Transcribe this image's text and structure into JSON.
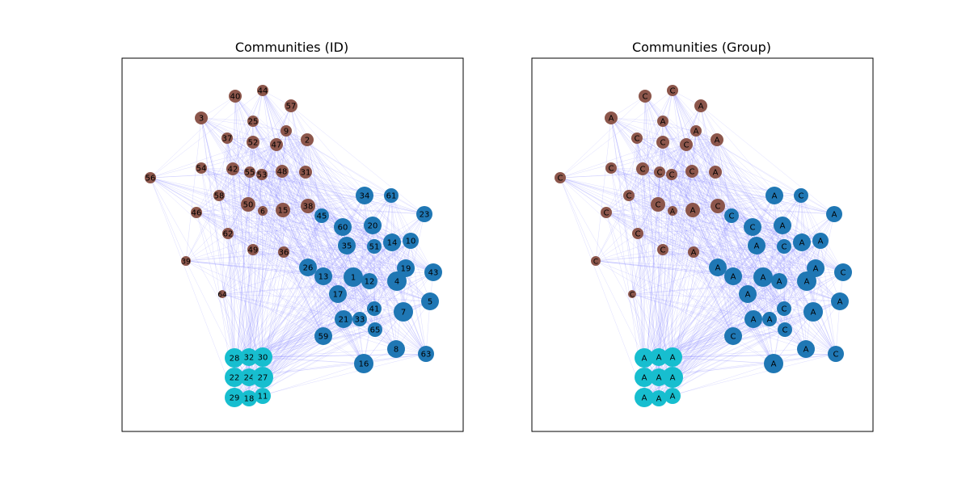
{
  "chart_data": [
    {
      "type": "network",
      "title": "Communities (ID)",
      "label_field": "id",
      "community_colors": {
        "brown": "#8c564b",
        "blue": "#1f77b4",
        "cyan": "#17becf"
      },
      "edge_color": "#8080ff"
    },
    {
      "type": "network",
      "title": "Communities (Group)",
      "label_field": "group",
      "community_colors": {
        "brown": "#8c564b",
        "blue": "#1f77b4",
        "cyan": "#17becf"
      },
      "edge_color": "#8080ff"
    }
  ],
  "nodes": [
    {
      "id": "44",
      "group": "C",
      "community": "brown"
    },
    {
      "id": "40",
      "group": "C",
      "community": "brown"
    },
    {
      "id": "57",
      "group": "A",
      "community": "brown"
    },
    {
      "id": "3",
      "group": "A",
      "community": "brown"
    },
    {
      "id": "25",
      "group": "A",
      "community": "brown"
    },
    {
      "id": "9",
      "group": "A",
      "community": "brown"
    },
    {
      "id": "37",
      "group": "C",
      "community": "brown"
    },
    {
      "id": "52",
      "group": "C",
      "community": "brown"
    },
    {
      "id": "47",
      "group": "C",
      "community": "brown"
    },
    {
      "id": "2",
      "group": "A",
      "community": "brown"
    },
    {
      "id": "54",
      "group": "C",
      "community": "brown"
    },
    {
      "id": "42",
      "group": "C",
      "community": "brown"
    },
    {
      "id": "55",
      "group": "C",
      "community": "brown"
    },
    {
      "id": "53",
      "group": "C",
      "community": "brown"
    },
    {
      "id": "48",
      "group": "C",
      "community": "brown"
    },
    {
      "id": "31",
      "group": "A",
      "community": "brown"
    },
    {
      "id": "56",
      "group": "C",
      "community": "brown"
    },
    {
      "id": "58",
      "group": "C",
      "community": "brown"
    },
    {
      "id": "50",
      "group": "C",
      "community": "brown"
    },
    {
      "id": "6",
      "group": "A",
      "community": "brown"
    },
    {
      "id": "15",
      "group": "A",
      "community": "brown"
    },
    {
      "id": "38",
      "group": "C",
      "community": "brown"
    },
    {
      "id": "46",
      "group": "C",
      "community": "brown"
    },
    {
      "id": "62",
      "group": "C",
      "community": "brown"
    },
    {
      "id": "49",
      "group": "C",
      "community": "brown"
    },
    {
      "id": "36",
      "group": "A",
      "community": "brown"
    },
    {
      "id": "39",
      "group": "C",
      "community": "brown"
    },
    {
      "id": "64",
      "group": "C",
      "community": "brown"
    },
    {
      "id": "34",
      "group": "A",
      "community": "blue"
    },
    {
      "id": "61",
      "group": "C",
      "community": "blue"
    },
    {
      "id": "23",
      "group": "A",
      "community": "blue"
    },
    {
      "id": "45",
      "group": "C",
      "community": "blue"
    },
    {
      "id": "60",
      "group": "C",
      "community": "blue"
    },
    {
      "id": "20",
      "group": "A",
      "community": "blue"
    },
    {
      "id": "35",
      "group": "A",
      "community": "blue"
    },
    {
      "id": "51",
      "group": "C",
      "community": "blue"
    },
    {
      "id": "14",
      "group": "A",
      "community": "blue"
    },
    {
      "id": "10",
      "group": "A",
      "community": "blue"
    },
    {
      "id": "26",
      "group": "A",
      "community": "blue"
    },
    {
      "id": "13",
      "group": "A",
      "community": "blue"
    },
    {
      "id": "1",
      "group": "A",
      "community": "blue"
    },
    {
      "id": "12",
      "group": "A",
      "community": "blue"
    },
    {
      "id": "4",
      "group": "A",
      "community": "blue"
    },
    {
      "id": "19",
      "group": "A",
      "community": "blue"
    },
    {
      "id": "43",
      "group": "C",
      "community": "blue"
    },
    {
      "id": "17",
      "group": "A",
      "community": "blue"
    },
    {
      "id": "41",
      "group": "C",
      "community": "blue"
    },
    {
      "id": "7",
      "group": "A",
      "community": "blue"
    },
    {
      "id": "5",
      "group": "A",
      "community": "blue"
    },
    {
      "id": "21",
      "group": "A",
      "community": "blue"
    },
    {
      "id": "33",
      "group": "A",
      "community": "blue"
    },
    {
      "id": "65",
      "group": "C",
      "community": "blue"
    },
    {
      "id": "59",
      "group": "C",
      "community": "blue"
    },
    {
      "id": "8",
      "group": "A",
      "community": "blue"
    },
    {
      "id": "63",
      "group": "C",
      "community": "blue"
    },
    {
      "id": "16",
      "group": "A",
      "community": "blue"
    },
    {
      "id": "28",
      "group": "A",
      "community": "cyan"
    },
    {
      "id": "32",
      "group": "A",
      "community": "cyan"
    },
    {
      "id": "30",
      "group": "A",
      "community": "cyan"
    },
    {
      "id": "22",
      "group": "A",
      "community": "cyan"
    },
    {
      "id": "24",
      "group": "A",
      "community": "cyan"
    },
    {
      "id": "27",
      "group": "A",
      "community": "cyan"
    },
    {
      "id": "29",
      "group": "A",
      "community": "cyan"
    },
    {
      "id": "18",
      "group": "A",
      "community": "cyan"
    },
    {
      "id": "11",
      "group": "A",
      "community": "cyan"
    }
  ]
}
